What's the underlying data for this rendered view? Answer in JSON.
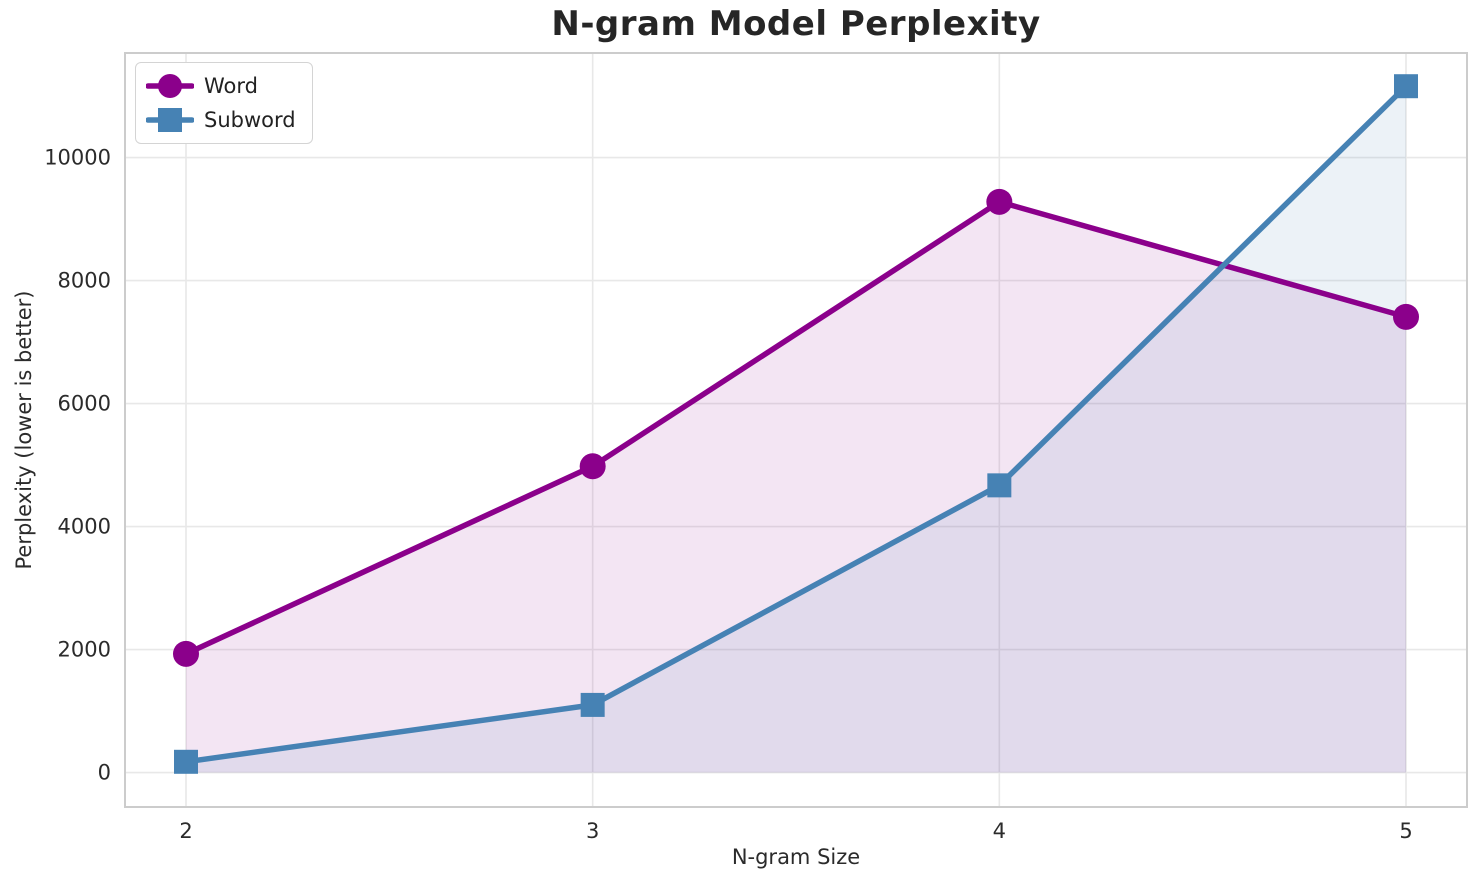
{
  "title": "N-gram Model Perplexity",
  "axes": {
    "x_label": "N-gram Size",
    "y_label": "Perplexity (lower is better)"
  },
  "legend": {
    "position": "upper left",
    "items": [
      {
        "label": "Word",
        "marker": "circle-icon",
        "color": "#8B008B"
      },
      {
        "label": "Subword",
        "marker": "square-icon",
        "color": "#4682B4"
      }
    ]
  },
  "chart_data": {
    "type": "line",
    "title": "N-gram Model Perplexity",
    "xlabel": "N-gram Size",
    "ylabel": "Perplexity (lower is better)",
    "x": [
      2,
      3,
      4,
      5
    ],
    "x_tick_labels": [
      "2",
      "3",
      "4",
      "5"
    ],
    "y_ticks": [
      0,
      2000,
      4000,
      6000,
      8000,
      10000
    ],
    "y_tick_labels": [
      "0",
      "2000",
      "4000",
      "6000",
      "8000",
      "10000"
    ],
    "series": [
      {
        "name": "Word",
        "values": [
          1930,
          4980,
          9280,
          7410
        ],
        "color": "#8B008B",
        "marker": "circle",
        "fill_to_zero": true,
        "fill_opacity": 0.1
      },
      {
        "name": "Subword",
        "values": [
          175,
          1100,
          4670,
          11160
        ],
        "color": "#4682B4",
        "marker": "square",
        "fill_to_zero": true,
        "fill_opacity": 0.1
      }
    ],
    "xlim": [
      1.85,
      5.15
    ],
    "ylim": [
      -560,
      11700
    ],
    "grid": true,
    "grid_color": "#e8e8e8",
    "spine_color": "#cccccc",
    "tick_label_color": "#2b2b2b",
    "background_color": "#ffffff",
    "legend_position": "upper left"
  }
}
